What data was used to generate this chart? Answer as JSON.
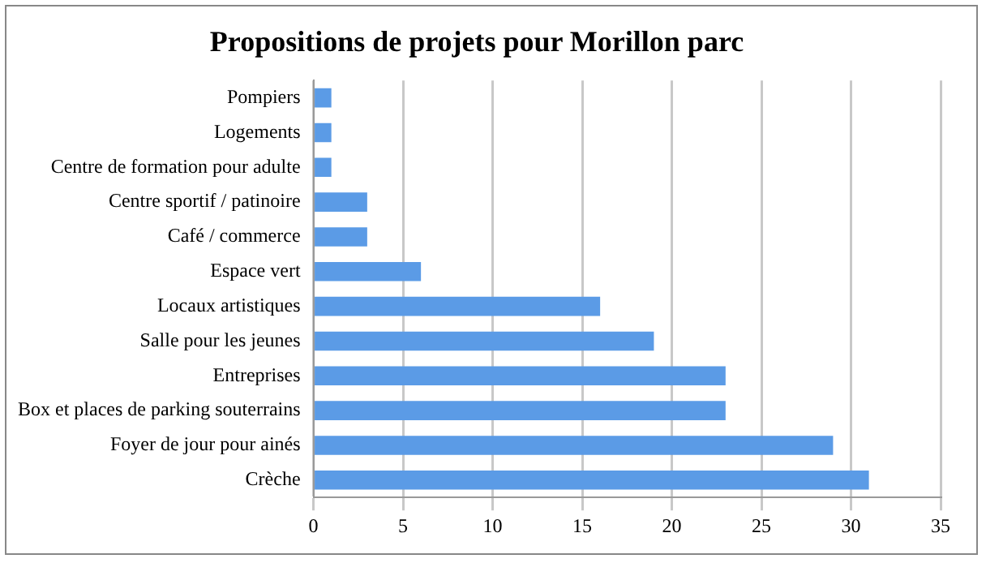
{
  "chart_data": {
    "type": "bar",
    "orientation": "horizontal",
    "title": "Propositions de projets pour Morillon parc",
    "categories": [
      "Pompiers",
      "Logements",
      "Centre de formation pour adulte",
      "Centre sportif / patinoire",
      "Café / commerce",
      "Espace vert",
      "Locaux artistiques",
      "Salle pour les jeunes",
      "Entreprises",
      "Box et places de parking souterrains",
      "Foyer de jour pour ainés",
      "Crèche"
    ],
    "values": [
      1,
      1,
      1,
      3,
      3,
      6,
      16,
      19,
      23,
      23,
      29,
      31
    ],
    "color": "#5b9be6",
    "xlim": [
      0,
      35
    ],
    "xticks": [
      0,
      5,
      10,
      15,
      20,
      25,
      30,
      35
    ],
    "grid": "x",
    "legend": false
  }
}
